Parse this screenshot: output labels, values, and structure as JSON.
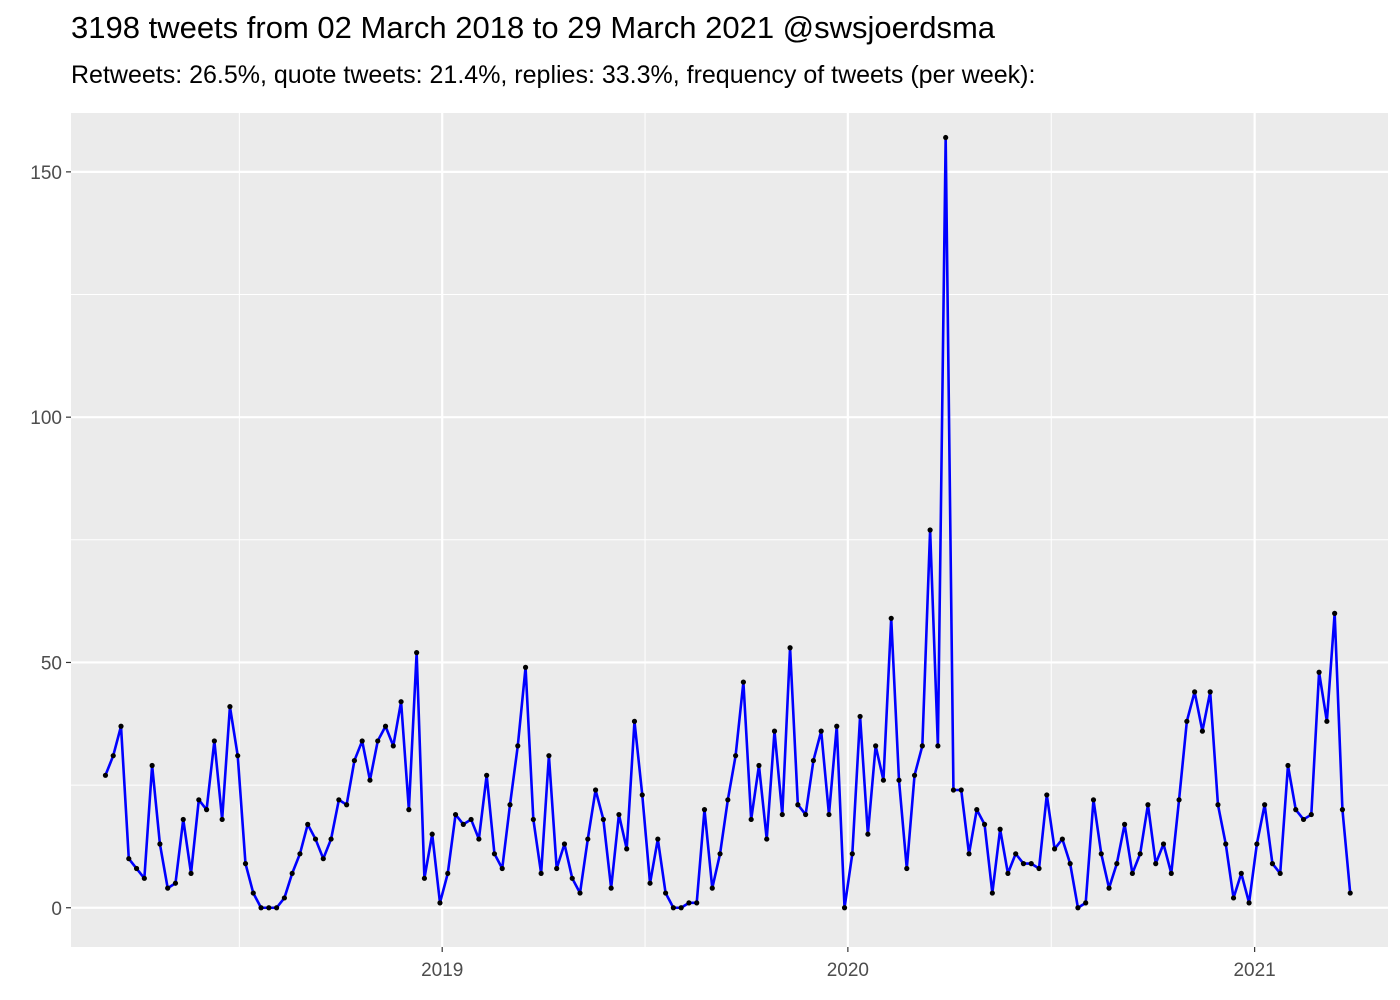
{
  "chart_data": {
    "type": "line",
    "title": "3198 tweets from 02 March 2018 to 29 March 2021 @swsjoerdsma",
    "subtitle": "Retweets: 26.5%, quote tweets: 21.4%, replies: 33.3%, frequency of tweets (per week):",
    "xlabel": "",
    "ylabel": "",
    "x_start": "2018-03-04",
    "x_step_days": 7,
    "xlim": [
      "2018-02-01",
      "2021-05-01"
    ],
    "ylim": [
      -8,
      162
    ],
    "x_ticks": [
      {
        "label": "2019",
        "date": "2019-01-01"
      },
      {
        "label": "2020",
        "date": "2020-01-01"
      },
      {
        "label": "2021",
        "date": "2021-01-01"
      }
    ],
    "y_ticks": [
      0,
      50,
      100,
      150
    ],
    "grid": true,
    "legend": "none",
    "colors": {
      "line": "#0000ff",
      "points": "#000000",
      "panel_bg": "#ebebeb",
      "grid_major": "#ffffff"
    },
    "series": [
      {
        "values": [
          27,
          31,
          37,
          10,
          8,
          6,
          29,
          13,
          4,
          5,
          18,
          7,
          22,
          20,
          34,
          18,
          41,
          31,
          9,
          3,
          0,
          0,
          0,
          2,
          7,
          11,
          17,
          14,
          10,
          14,
          22,
          21,
          30,
          34,
          26,
          34,
          37,
          33,
          42,
          20,
          52,
          6,
          15,
          1,
          7,
          19,
          17,
          18,
          14,
          27,
          11,
          8,
          21,
          33,
          49,
          18,
          7,
          31,
          8,
          13,
          6,
          3,
          14,
          24,
          18,
          4,
          19,
          12,
          38,
          23,
          5,
          14,
          3,
          0,
          0,
          1,
          1,
          20,
          4,
          11,
          22,
          31,
          46,
          18,
          29,
          14,
          36,
          19,
          53,
          21,
          19,
          30,
          36,
          19,
          37,
          0,
          11,
          39,
          15,
          33,
          26,
          59,
          26,
          8,
          27,
          33,
          77,
          33,
          157,
          24,
          24,
          11,
          20,
          17,
          3,
          16,
          7,
          11,
          9,
          9,
          8,
          23,
          12,
          14,
          9,
          0,
          1,
          22,
          11,
          4,
          9,
          17,
          7,
          11,
          21,
          9,
          13,
          7,
          22,
          38,
          44,
          36,
          44,
          21,
          13,
          2,
          7,
          1,
          13,
          21,
          9,
          7,
          29,
          20,
          18,
          19,
          48,
          38,
          60,
          20,
          3
        ]
      }
    ]
  }
}
